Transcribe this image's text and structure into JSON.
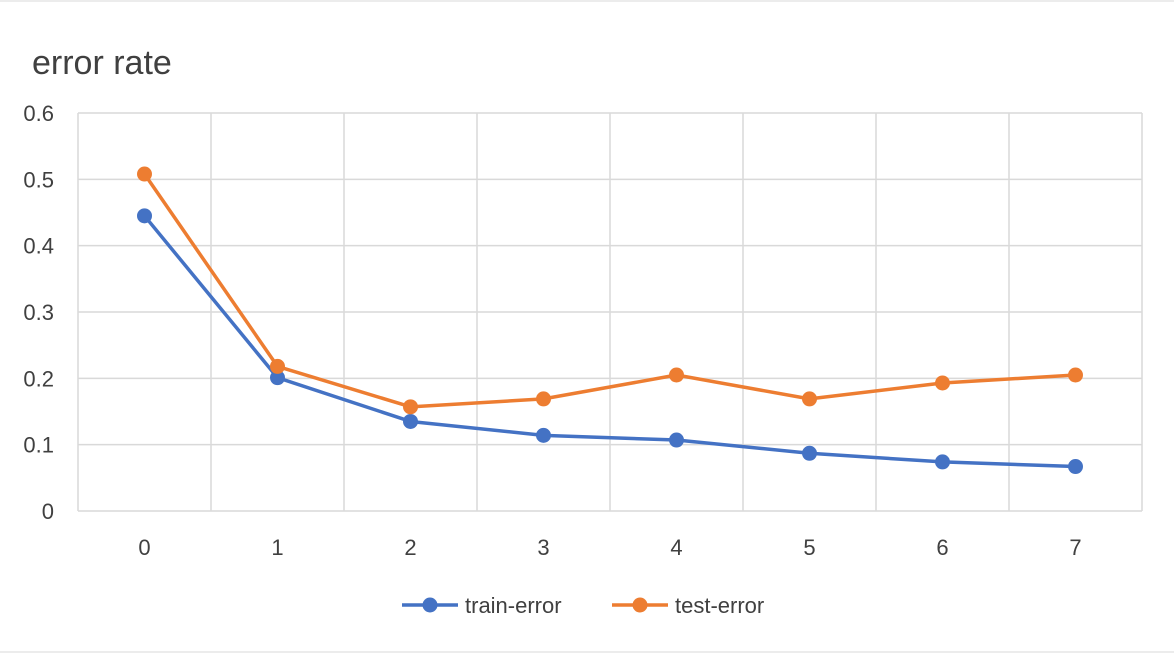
{
  "chart_data": {
    "type": "line",
    "title": "error rate",
    "xlabel": "",
    "ylabel": "",
    "categories": [
      "0",
      "1",
      "2",
      "3",
      "4",
      "5",
      "6",
      "7"
    ],
    "x": [
      0,
      1,
      2,
      3,
      4,
      5,
      6,
      7
    ],
    "ylim": [
      0,
      0.6
    ],
    "yticks": [
      0,
      0.1,
      0.2,
      0.3,
      0.4,
      0.5,
      0.6
    ],
    "ytick_labels": [
      "0",
      "0.1",
      "0.2",
      "0.3",
      "0.4",
      "0.5",
      "0.6"
    ],
    "grid": true,
    "legend_position": "bottom",
    "series": [
      {
        "name": "train-error",
        "color": "#4472C4",
        "values": [
          0.445,
          0.201,
          0.135,
          0.114,
          0.107,
          0.087,
          0.074,
          0.067
        ]
      },
      {
        "name": "test-error",
        "color": "#ED7D31",
        "values": [
          0.508,
          0.218,
          0.157,
          0.169,
          0.205,
          0.169,
          0.193,
          0.205
        ]
      }
    ]
  }
}
